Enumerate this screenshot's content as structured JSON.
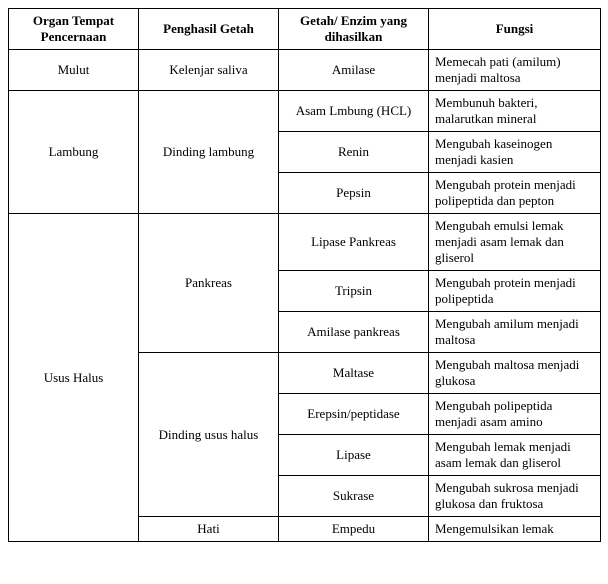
{
  "headers": {
    "organ": "Organ Tempat Pencernaan",
    "penghasil": "Penghasil Getah",
    "enzim": "Getah/ Enzim yang dihasilkan",
    "fungsi": "Fungsi"
  },
  "rows": {
    "mulut": {
      "organ": "Mulut",
      "penghasil": "Kelenjar saliva",
      "enzim": "Amilase",
      "fungsi": "Memecah pati (amilum) menjadi maltosa"
    },
    "lambung": {
      "organ": "Lambung",
      "penghasil": "Dinding lambung",
      "r1": {
        "enzim": "Asam Lmbung (HCL)",
        "fungsi": "Membunuh bakteri, malarutkan mineral"
      },
      "r2": {
        "enzim": "Renin",
        "fungsi": "Mengubah kaseinogen menjadi kasien"
      },
      "r3": {
        "enzim": "Pepsin",
        "fungsi": "Mengubah protein menjadi polipeptida dan pepton"
      }
    },
    "usus": {
      "organ": "Usus Halus",
      "pankreas": {
        "label": "Pankreas",
        "r1": {
          "enzim": "Lipase Pankreas",
          "fungsi": "Mengubah emulsi lemak menjadi asam lemak dan gliserol"
        },
        "r2": {
          "enzim": "Tripsin",
          "fungsi": "Mengubah protein menjadi polipeptida"
        },
        "r3": {
          "enzim": "Amilase pankreas",
          "fungsi": "Mengubah amilum menjadi maltosa"
        }
      },
      "dinding": {
        "label": "Dinding usus halus",
        "r1": {
          "enzim": "Maltase",
          "fungsi": "Mengubah maltosa menjadi glukosa"
        },
        "r2": {
          "enzim": "Erepsin/peptidase",
          "fungsi": "Mengubah polipeptida menjadi asam amino"
        },
        "r3": {
          "enzim": "Lipase",
          "fungsi": "Mengubah lemak menjadi asam lemak dan gliserol"
        },
        "r4": {
          "enzim": "Sukrase",
          "fungsi": "Mengubah sukrosa menjadi glukosa dan fruktosa"
        }
      },
      "hati": {
        "label": "Hati",
        "r1": {
          "enzim": "Empedu",
          "fungsi": "Mengemulsikan lemak"
        }
      }
    }
  }
}
